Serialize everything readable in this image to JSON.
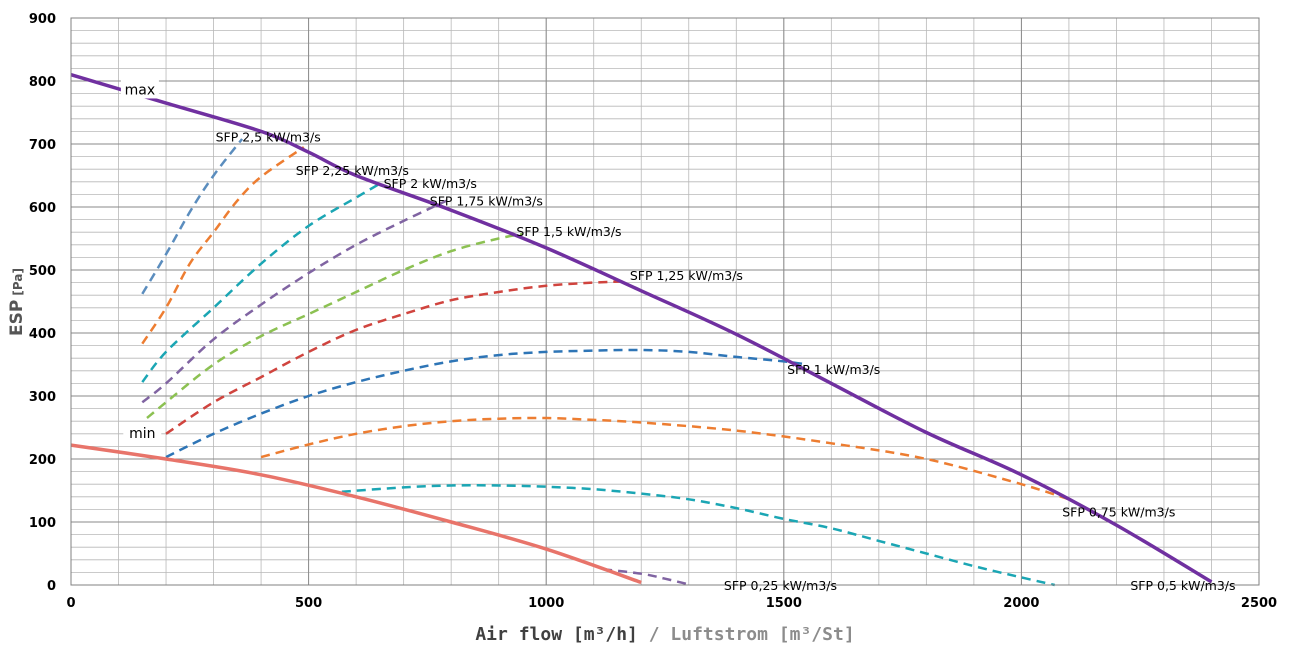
{
  "chart_data": {
    "type": "line",
    "xlim": [
      0,
      2500
    ],
    "ylim": [
      0,
      900
    ],
    "xticks": [
      0,
      500,
      1000,
      1500,
      2000,
      2500
    ],
    "yticks": [
      0,
      100,
      200,
      300,
      400,
      500,
      600,
      700,
      800,
      900
    ],
    "x_minor_step": 100,
    "y_minor_step": 20,
    "grid": true,
    "xlabel": {
      "part1": "Air flow [m³/h]",
      "sep": " / ",
      "part2": "Luftstrom [m³/St]"
    },
    "ylabel": {
      "main": "ESP",
      "unit": "[Pa]"
    },
    "annotations": [
      {
        "text": "max",
        "x": 145,
        "y": 785
      },
      {
        "text": "min",
        "x": 150,
        "y": 240
      }
    ],
    "series": [
      {
        "name": "max",
        "color": "#7030A0",
        "style": "solid",
        "width": 3.5,
        "points": [
          [
            0,
            810
          ],
          [
            200,
            765
          ],
          [
            400,
            720
          ],
          [
            500,
            687
          ],
          [
            600,
            650
          ],
          [
            800,
            595
          ],
          [
            1000,
            535
          ],
          [
            1200,
            467
          ],
          [
            1400,
            398
          ],
          [
            1600,
            320
          ],
          [
            1800,
            242
          ],
          [
            2000,
            175
          ],
          [
            2200,
            95
          ],
          [
            2400,
            5
          ]
        ]
      },
      {
        "name": "min",
        "color": "#E8746A",
        "style": "solid",
        "width": 3.5,
        "points": [
          [
            0,
            222
          ],
          [
            200,
            200
          ],
          [
            400,
            175
          ],
          [
            600,
            140
          ],
          [
            800,
            100
          ],
          [
            1000,
            57
          ],
          [
            1200,
            4
          ]
        ]
      },
      {
        "name": "SFP 2,5 kW/m3/s",
        "color": "#5B8DBE",
        "style": "dashed",
        "width": 2.5,
        "points": [
          [
            150,
            462
          ],
          [
            200,
            525
          ],
          [
            250,
            592
          ],
          [
            300,
            650
          ],
          [
            360,
            708
          ]
        ],
        "label": {
          "x": 415,
          "y": 712
        }
      },
      {
        "name": "SFP 2,25 kW/m3/s",
        "color": "#ED7D31",
        "style": "dashed",
        "width": 2.5,
        "points": [
          [
            150,
            383
          ],
          [
            200,
            440
          ],
          [
            250,
            510
          ],
          [
            300,
            560
          ],
          [
            350,
            610
          ],
          [
            400,
            648
          ],
          [
            490,
            695
          ]
        ],
        "label": {
          "x": 592,
          "y": 659
        }
      },
      {
        "name": "SFP 2 kW/m3/s",
        "color": "#1BA6B4",
        "style": "dashed",
        "width": 2.5,
        "points": [
          [
            150,
            322
          ],
          [
            200,
            370
          ],
          [
            300,
            440
          ],
          [
            400,
            510
          ],
          [
            500,
            570
          ],
          [
            600,
            615
          ],
          [
            650,
            637
          ]
        ],
        "label": {
          "x": 756,
          "y": 638
        }
      },
      {
        "name": "SFP 1,75 kW/m3/s",
        "color": "#8064A2",
        "style": "dashed",
        "width": 2.5,
        "points": [
          [
            150,
            290
          ],
          [
            200,
            320
          ],
          [
            300,
            390
          ],
          [
            400,
            445
          ],
          [
            500,
            495
          ],
          [
            600,
            540
          ],
          [
            700,
            578
          ],
          [
            790,
            610
          ]
        ],
        "label": {
          "x": 874,
          "y": 610
        }
      },
      {
        "name": "SFP 1,5 kW/m3/s",
        "color": "#8CC152",
        "style": "dashed",
        "width": 2.5,
        "points": [
          [
            160,
            265
          ],
          [
            200,
            290
          ],
          [
            300,
            350
          ],
          [
            400,
            395
          ],
          [
            500,
            430
          ],
          [
            600,
            465
          ],
          [
            700,
            500
          ],
          [
            800,
            530
          ],
          [
            900,
            550
          ],
          [
            950,
            557
          ]
        ],
        "label": {
          "x": 1048,
          "y": 562
        }
      },
      {
        "name": "SFP 1,25 kW/m3/s",
        "color": "#D0443E",
        "style": "dashed",
        "width": 2.5,
        "points": [
          [
            200,
            240
          ],
          [
            300,
            290
          ],
          [
            400,
            330
          ],
          [
            500,
            370
          ],
          [
            600,
            405
          ],
          [
            700,
            430
          ],
          [
            800,
            452
          ],
          [
            900,
            465
          ],
          [
            1000,
            475
          ],
          [
            1100,
            480
          ],
          [
            1170,
            482
          ]
        ],
        "label": {
          "x": 1295,
          "y": 492
        }
      },
      {
        "name": "SFP 1 kW/m3/s",
        "color": "#2E75B6",
        "style": "dashed",
        "width": 2.5,
        "points": [
          [
            200,
            203
          ],
          [
            300,
            240
          ],
          [
            400,
            272
          ],
          [
            500,
            300
          ],
          [
            600,
            322
          ],
          [
            700,
            340
          ],
          [
            800,
            355
          ],
          [
            900,
            365
          ],
          [
            1000,
            370
          ],
          [
            1100,
            372
          ],
          [
            1200,
            373
          ],
          [
            1300,
            370
          ],
          [
            1400,
            362
          ],
          [
            1500,
            355
          ],
          [
            1550,
            350
          ]
        ],
        "label": {
          "x": 1605,
          "y": 343
        }
      },
      {
        "name": "SFP 0,75 kW/m3/s",
        "color": "#ED7D31",
        "style": "dashed",
        "width": 2.5,
        "points": [
          [
            400,
            203
          ],
          [
            500,
            223
          ],
          [
            600,
            240
          ],
          [
            700,
            252
          ],
          [
            800,
            260
          ],
          [
            900,
            264
          ],
          [
            1000,
            265
          ],
          [
            1100,
            262
          ],
          [
            1200,
            258
          ],
          [
            1400,
            245
          ],
          [
            1600,
            225
          ],
          [
            1800,
            200
          ],
          [
            2000,
            160
          ],
          [
            2100,
            136
          ]
        ],
        "label": {
          "x": 2205,
          "y": 117
        }
      },
      {
        "name": "SFP 0,5 kW/m3/s",
        "color": "#1BA6B4",
        "style": "dashed",
        "width": 2.5,
        "points": [
          [
            570,
            148
          ],
          [
            700,
            155
          ],
          [
            800,
            158
          ],
          [
            900,
            158
          ],
          [
            1000,
            156
          ],
          [
            1100,
            152
          ],
          [
            1200,
            145
          ],
          [
            1300,
            136
          ],
          [
            1400,
            122
          ],
          [
            1500,
            105
          ],
          [
            1600,
            90
          ],
          [
            1700,
            70
          ],
          [
            1800,
            50
          ],
          [
            1900,
            30
          ],
          [
            2000,
            12
          ],
          [
            2070,
            0
          ]
        ],
        "label": {
          "x": 2340,
          "y": 0
        }
      },
      {
        "name": "SFP 0,25 kW/m3/s",
        "color": "#8064A2",
        "style": "dashed",
        "width": 2.5,
        "points": [
          [
            1120,
            25
          ],
          [
            1200,
            18
          ],
          [
            1250,
            10
          ],
          [
            1300,
            1
          ]
        ],
        "label": {
          "x": 1493,
          "y": 0
        }
      }
    ]
  }
}
